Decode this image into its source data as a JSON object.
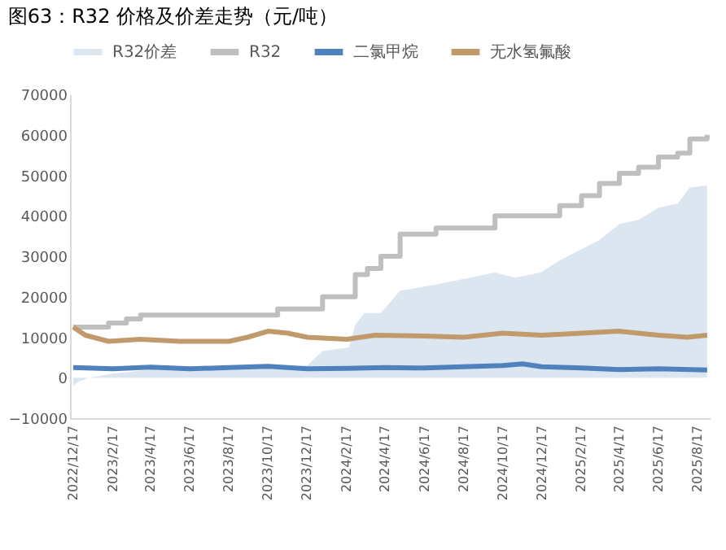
{
  "chart_data": {
    "type": "line",
    "title": "图63：R32 价格及价差走势（元/吨）",
    "ylim": [
      -10000,
      70000
    ],
    "yticks": [
      -10000,
      0,
      10000,
      20000,
      30000,
      40000,
      50000,
      60000,
      70000
    ],
    "xlim": [
      "2022-12-12",
      "2025-09-05"
    ],
    "xticks": [
      {
        "value": "2022-12-17",
        "label": "2022/12/17"
      },
      {
        "value": "2023-02-17",
        "label": "2023/2/17"
      },
      {
        "value": "2023-04-17",
        "label": "2023/4/17"
      },
      {
        "value": "2023-06-17",
        "label": "2023/6/17"
      },
      {
        "value": "2023-08-17",
        "label": "2023/8/17"
      },
      {
        "value": "2023-10-17",
        "label": "2023/10/17"
      },
      {
        "value": "2023-12-17",
        "label": "2023/12/17"
      },
      {
        "value": "2024-02-17",
        "label": "2024/2/17"
      },
      {
        "value": "2024-04-17",
        "label": "2024/4/17"
      },
      {
        "value": "2024-06-17",
        "label": "2024/6/17"
      },
      {
        "value": "2024-08-17",
        "label": "2024/8/17"
      },
      {
        "value": "2024-10-17",
        "label": "2024/10/17"
      },
      {
        "value": "2024-12-17",
        "label": "2024/12/17"
      },
      {
        "value": "2025-02-17",
        "label": "2025/2/17"
      },
      {
        "value": "2025-04-17",
        "label": "2025/4/17"
      },
      {
        "value": "2025-06-17",
        "label": "2025/6/17"
      },
      {
        "value": "2025-08-17",
        "label": "2025/8/17"
      }
    ],
    "legend": "top",
    "grid": false,
    "series": [
      {
        "name": "R32价差",
        "type": "area",
        "color": "#dce6f1",
        "x": [
          "2022-12-17",
          "2022-12-25",
          "2023-01-10",
          "2023-02-17",
          "2023-04-17",
          "2023-06-17",
          "2023-08-17",
          "2023-10-17",
          "2023-12-17",
          "2024-01-10",
          "2024-02-20",
          "2024-03-01",
          "2024-03-15",
          "2024-04-10",
          "2024-05-10",
          "2024-07-05",
          "2024-10-05",
          "2024-11-05",
          "2024-12-15",
          "2025-01-14",
          "2025-03-17",
          "2025-04-17",
          "2025-05-17",
          "2025-06-17",
          "2025-07-17",
          "2025-08-05",
          "2025-09-01"
        ],
        "values": [
          -2000,
          -1000,
          0,
          1000,
          2000,
          2500,
          2500,
          2500,
          3000,
          6600,
          7500,
          13000,
          16000,
          16000,
          21500,
          23000,
          26000,
          24700,
          26000,
          29000,
          34000,
          38000,
          39000,
          42000,
          43000,
          47000,
          47500
        ]
      },
      {
        "name": "R32",
        "type": "step",
        "color": "#bfbfbf",
        "x": [
          "2022-12-17",
          "2023-02-10",
          "2023-03-10",
          "2023-04-01",
          "2023-11-01",
          "2024-01-10",
          "2024-03-01",
          "2024-03-20",
          "2024-04-10",
          "2024-05-10",
          "2024-07-05",
          "2024-10-05",
          "2025-01-14",
          "2025-02-17",
          "2025-03-17",
          "2025-04-17",
          "2025-05-17",
          "2025-06-17",
          "2025-07-17",
          "2025-08-05",
          "2025-09-01"
        ],
        "values": [
          12500,
          13500,
          14500,
          15500,
          17000,
          20000,
          25500,
          27000,
          30000,
          35500,
          37000,
          40000,
          42500,
          45000,
          48000,
          50500,
          52000,
          54500,
          55500,
          59000,
          60000
        ]
      },
      {
        "name": "二氯甲烷",
        "type": "line",
        "color": "#4f81bd",
        "x": [
          "2022-12-17",
          "2023-02-17",
          "2023-04-17",
          "2023-06-17",
          "2023-08-17",
          "2023-10-17",
          "2023-12-17",
          "2024-02-17",
          "2024-04-17",
          "2024-06-17",
          "2024-08-17",
          "2024-10-17",
          "2024-11-17",
          "2024-12-17",
          "2025-02-17",
          "2025-04-17",
          "2025-06-17",
          "2025-09-01"
        ],
        "values": [
          2500,
          2200,
          2600,
          2200,
          2500,
          2800,
          2200,
          2300,
          2500,
          2400,
          2700,
          3000,
          3400,
          2700,
          2400,
          2000,
          2200,
          1900
        ]
      },
      {
        "name": "无水氢氟酸",
        "type": "line",
        "color": "#c09a6b",
        "x": [
          "2022-12-17",
          "2023-01-05",
          "2023-02-10",
          "2023-04-01",
          "2023-06-01",
          "2023-08-17",
          "2023-09-15",
          "2023-10-17",
          "2023-11-17",
          "2023-12-17",
          "2024-02-17",
          "2024-04-01",
          "2024-06-17",
          "2024-08-17",
          "2024-10-17",
          "2024-12-17",
          "2025-02-17",
          "2025-04-17",
          "2025-06-17",
          "2025-08-01",
          "2025-09-01"
        ],
        "values": [
          12500,
          10500,
          9000,
          9500,
          9000,
          9000,
          10000,
          11500,
          11000,
          10000,
          9500,
          10500,
          10300,
          10000,
          11000,
          10500,
          11000,
          11500,
          10500,
          10000,
          10500
        ]
      }
    ]
  }
}
